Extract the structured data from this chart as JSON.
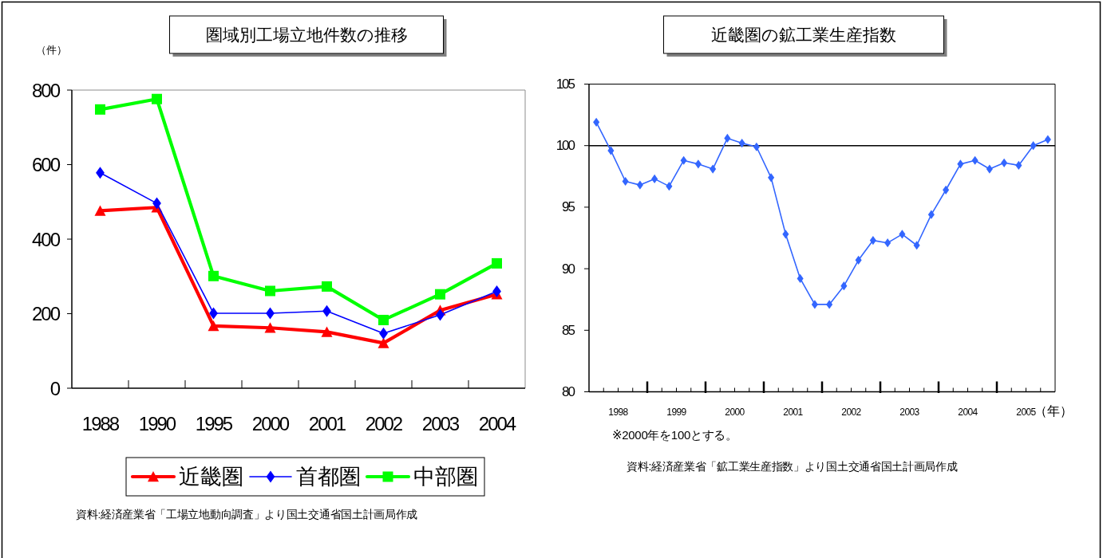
{
  "chart_data": [
    {
      "type": "line",
      "title": "圏域別工場立地件数の推移",
      "ylabel": "（件）",
      "categories": [
        "1988",
        "1990",
        "1995",
        "2000",
        "2001",
        "2002",
        "2003",
        "2004"
      ],
      "series": [
        {
          "name": "近畿圏",
          "color": "#ff0000",
          "marker": "triangle",
          "values": [
            476,
            485,
            167,
            162,
            151,
            121,
            209,
            252
          ]
        },
        {
          "name": "首都圏",
          "color": "#0000ff",
          "marker": "diamond",
          "values": [
            578,
            496,
            201,
            201,
            207,
            147,
            197,
            260
          ]
        },
        {
          "name": "中部圏",
          "color": "#00ff00",
          "marker": "square",
          "values": [
            748,
            776,
            301,
            261,
            273,
            183,
            252,
            335
          ]
        }
      ],
      "ylim": [
        0,
        800
      ],
      "yticks": [
        0,
        200,
        400,
        600,
        800
      ],
      "legend": "bottom",
      "annotations": [
        "資料:経済産業省「工場立地動向調査」より国土交通省国土計画局作成"
      ]
    },
    {
      "type": "line",
      "title": "近畿圏の鉱工業生産指数",
      "xlabel": "（年）",
      "x": [
        1998.125,
        1998.375,
        1998.625,
        1998.875,
        1999.125,
        1999.375,
        1999.625,
        1999.875,
        2000.125,
        2000.375,
        2000.625,
        2000.875,
        2001.125,
        2001.375,
        2001.625,
        2001.875,
        2002.125,
        2002.375,
        2002.625,
        2002.875,
        2003.125,
        2003.375,
        2003.625,
        2003.875,
        2004.125,
        2004.375,
        2004.625,
        2004.875,
        2005.125,
        2005.375,
        2005.625,
        2005.875
      ],
      "series": [
        {
          "color": "#3366ff",
          "marker": "diamond",
          "values": [
            101.9,
            99.6,
            97.1,
            96.8,
            97.3,
            96.7,
            98.8,
            98.5,
            98.1,
            100.6,
            100.2,
            99.9,
            97.4,
            92.8,
            89.2,
            87.1,
            87.1,
            88.6,
            90.7,
            92.3,
            92.1,
            92.8,
            91.9,
            94.4,
            96.4,
            98.5,
            98.8,
            98.1,
            98.6,
            98.4,
            100.0,
            100.5
          ]
        }
      ],
      "xlim": [
        1998,
        2006
      ],
      "xticks": [
        {
          "value": 1998.25,
          "label": null
        },
        {
          "value": 1998.5,
          "label": "1998"
        },
        {
          "value": 1998.75,
          "label": null
        },
        {
          "value": 1999,
          "label": null
        },
        {
          "value": 1999.25,
          "label": null
        },
        {
          "value": 1999.5,
          "label": "1999"
        },
        {
          "value": 1999.75,
          "label": null
        },
        {
          "value": 2000,
          "label": null
        },
        {
          "value": 2000.25,
          "label": null
        },
        {
          "value": 2000.5,
          "label": "2000"
        },
        {
          "value": 2000.75,
          "label": null
        },
        {
          "value": 2001,
          "label": null
        },
        {
          "value": 2001.25,
          "label": null
        },
        {
          "value": 2001.5,
          "label": "2001"
        },
        {
          "value": 2001.75,
          "label": null
        },
        {
          "value": 2002,
          "label": null
        },
        {
          "value": 2002.25,
          "label": null
        },
        {
          "value": 2002.5,
          "label": "2002"
        },
        {
          "value": 2002.75,
          "label": null
        },
        {
          "value": 2003,
          "label": null
        },
        {
          "value": 2003.25,
          "label": null
        },
        {
          "value": 2003.5,
          "label": "2003"
        },
        {
          "value": 2003.75,
          "label": null
        },
        {
          "value": 2004,
          "label": null
        },
        {
          "value": 2004.25,
          "label": null
        },
        {
          "value": 2004.5,
          "label": "2004"
        },
        {
          "value": 2004.75,
          "label": null
        },
        {
          "value": 2005,
          "label": null
        },
        {
          "value": 2005.25,
          "label": null
        },
        {
          "value": 2005.5,
          "label": "2005"
        },
        {
          "value": 2005.75,
          "label": null
        }
      ],
      "ylim": [
        80,
        105
      ],
      "yticks": [
        80,
        85,
        90,
        95,
        100,
        105
      ],
      "ref_lines": [
        {
          "axis": "y",
          "value": 100,
          "color": "#000000"
        }
      ],
      "annotations": [
        "※2000年を100とする。",
        "資料:経済産業省「鉱工業生産指数」より国土交通省国土計画局作成"
      ]
    }
  ]
}
